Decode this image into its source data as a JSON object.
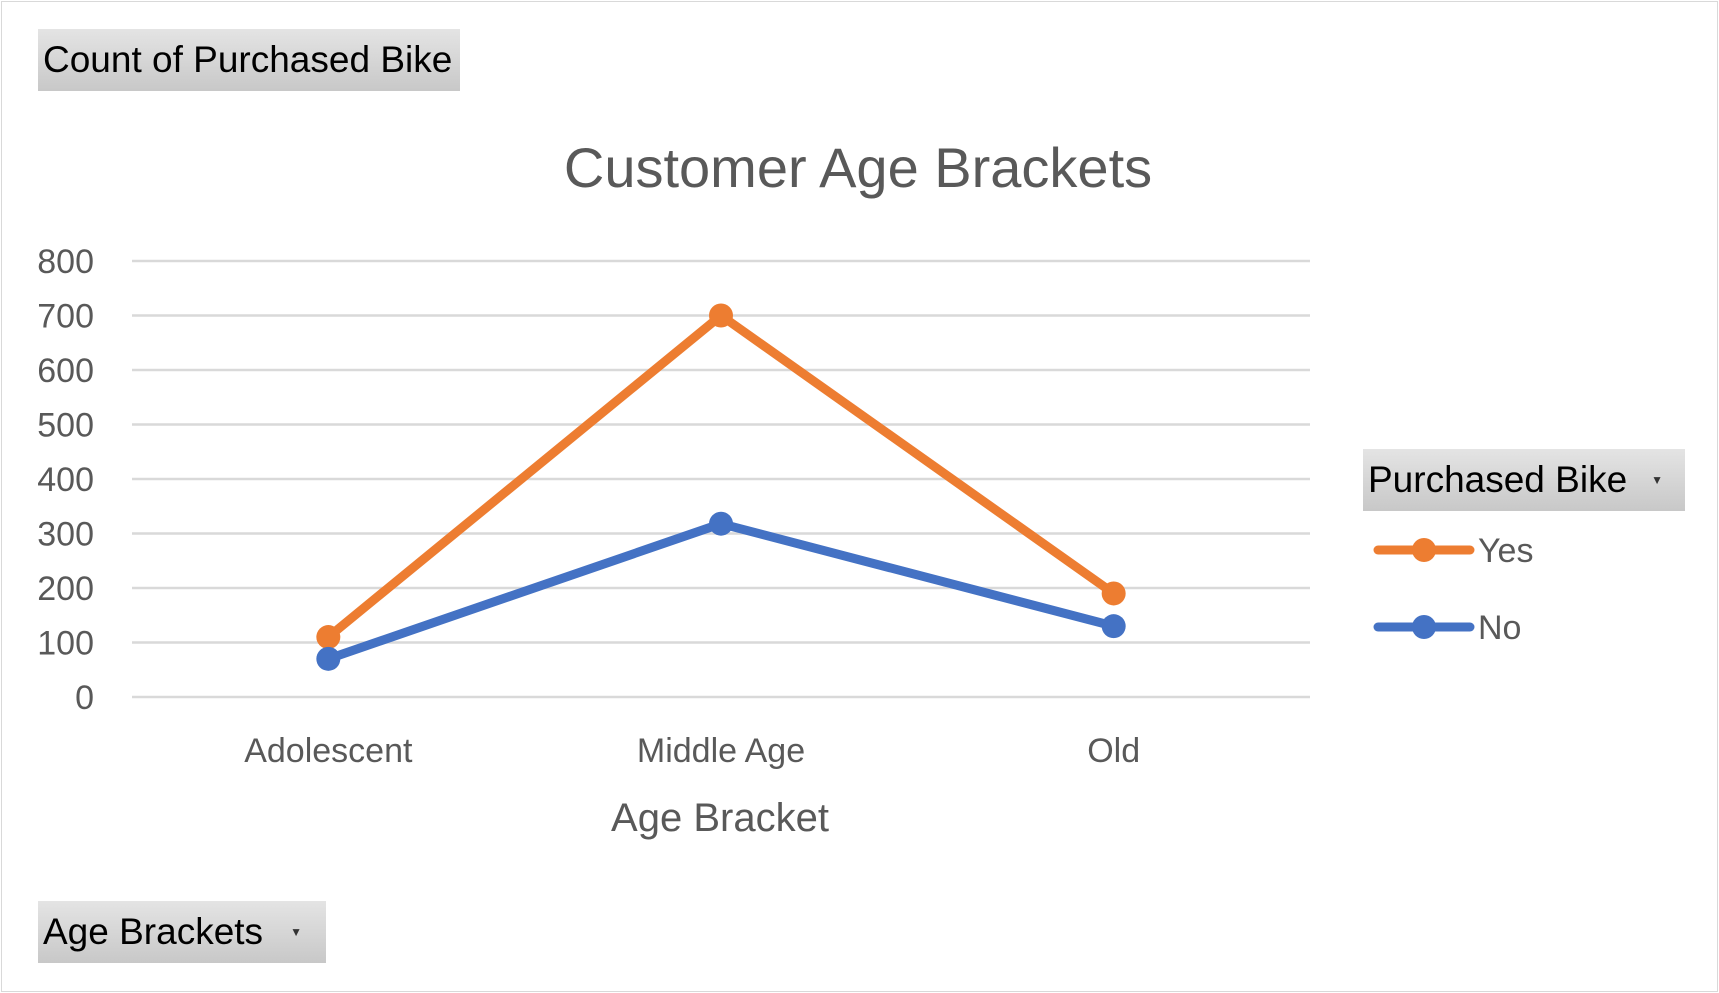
{
  "pivot_fields": {
    "values_label": "Count of Purchased Bike",
    "axis_label": "Age Brackets",
    "legend_label": "Purchased Bike"
  },
  "chart_data": {
    "type": "line",
    "title": "Customer Age Brackets",
    "xlabel": "Age Bracket",
    "ylabel": "",
    "categories": [
      "Adolescent",
      "Middle Age",
      "Old"
    ],
    "series": [
      {
        "name": "Yes",
        "color": "#ED7D31",
        "values": [
          110,
          700,
          190
        ]
      },
      {
        "name": "No",
        "color": "#4472C4",
        "values": [
          70,
          318,
          130
        ]
      }
    ],
    "ylim": [
      0,
      800
    ],
    "yticks": [
      0,
      100,
      200,
      300,
      400,
      500,
      600,
      700,
      800
    ],
    "grid": true,
    "legend_position": "right",
    "markers": true
  }
}
